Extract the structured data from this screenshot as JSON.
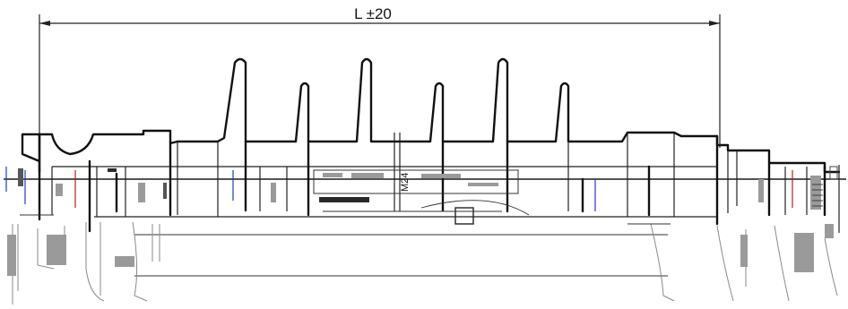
{
  "dimension": {
    "label": "L ±20"
  },
  "thread_label": "M24"
}
